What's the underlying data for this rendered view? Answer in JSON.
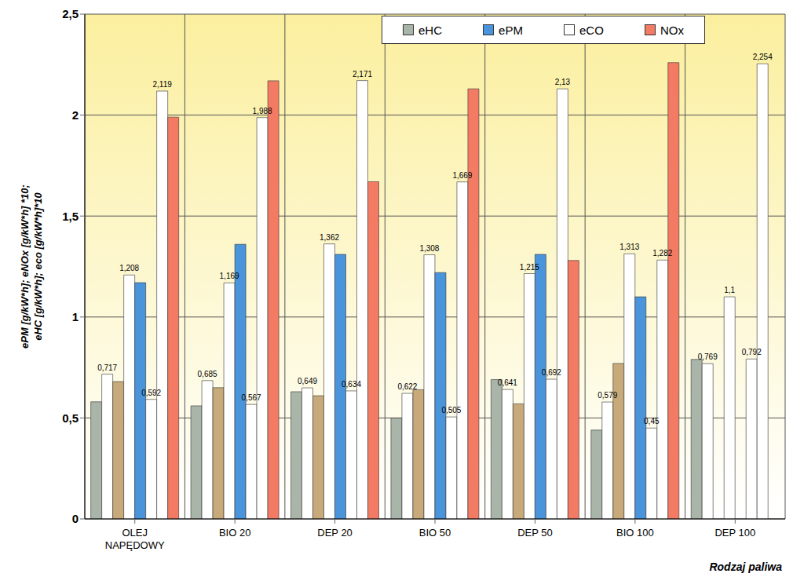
{
  "chart_data": {
    "type": "bar",
    "x_label": "Rodzaj paliwa",
    "y_label": [
      "ePM  [g/kW*h];  eNOx [g/kW*h] *10;",
      "eHC [g/kW*h]; eco [g/kW*h]*10"
    ],
    "categories": [
      "OLEJ NAPĘDOWY",
      "BIO 20",
      "DEP 20",
      "BIO 50",
      "DEP 50",
      "BIO 100",
      "DEP 100"
    ],
    "ylim": [
      0,
      2.5
    ],
    "yticks": [
      0,
      {
        "value": 0.5,
        "label": "0,5"
      },
      1,
      {
        "value": 1.5,
        "label": "1,5"
      },
      2,
      {
        "value": 2.5,
        "label": "2,5"
      }
    ],
    "grid": true,
    "legend": "top",
    "series": [
      {
        "name": "eHC",
        "color": "#a9b5a8",
        "values": [
          0.58,
          0.56,
          0.63,
          0.5,
          0.69,
          0.44,
          0.79
        ]
      },
      {
        "color": "#ffffff",
        "data_labels": true,
        "values": [
          0.717,
          0.685,
          0.649,
          0.622,
          0.641,
          0.579,
          0.769
        ],
        "value_labels": [
          "0,717",
          "0,685",
          "0,649",
          "0,622",
          "0,641",
          "0,579",
          "0,769"
        ]
      },
      {
        "color": "#c8aa7a",
        "values": [
          0.68,
          0.65,
          0.61,
          0.64,
          0.57,
          0.77,
          null
        ]
      },
      {
        "color": "#ffffff",
        "data_labels": true,
        "values": [
          1.208,
          1.169,
          1.362,
          1.308,
          1.215,
          1.313,
          1.1
        ],
        "value_labels": [
          "1,208",
          "1,169",
          "1,362",
          "1,308",
          "1,215",
          "1,313",
          "1,1"
        ]
      },
      {
        "name": "ePM",
        "color": "#4a94dc",
        "values": [
          1.17,
          1.36,
          1.31,
          1.22,
          1.31,
          1.1,
          null
        ]
      },
      {
        "color": "#ffffff",
        "data_labels": true,
        "values": [
          0.592,
          0.567,
          0.634,
          0.505,
          0.692,
          0.45,
          0.792
        ],
        "value_labels": [
          "0,592",
          "0,567",
          "0,634",
          "0,505",
          "0,692",
          "0,45",
          "0,792"
        ]
      },
      {
        "name": "eCO",
        "color": "#ffffff",
        "data_labels": true,
        "values": [
          2.119,
          1.988,
          2.171,
          1.669,
          2.13,
          1.282,
          2.254
        ],
        "value_labels": [
          "2,119",
          "1,988",
          "2,171",
          "1,669",
          "2,13",
          "1,282",
          "2,254"
        ]
      },
      {
        "name": "NOx",
        "color": "#f47b63",
        "values": [
          1.99,
          2.17,
          1.67,
          2.13,
          1.28,
          2.26,
          null
        ]
      }
    ]
  }
}
